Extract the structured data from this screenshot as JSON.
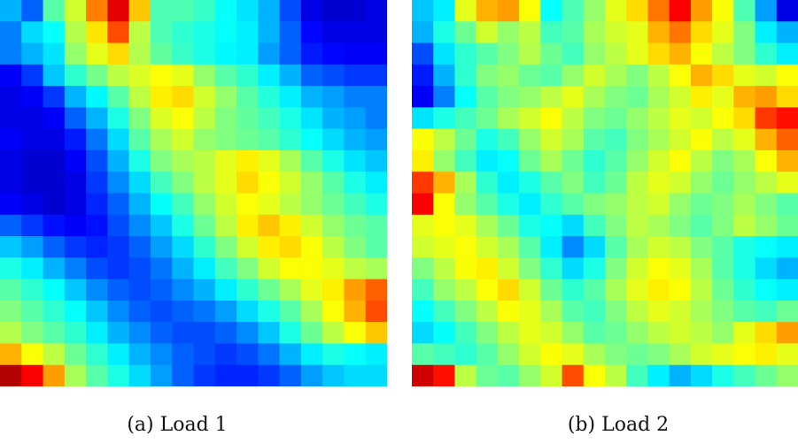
{
  "captions": {
    "a": "(a) Load 1",
    "b": "(b) Load 2"
  },
  "chart_data": [
    {
      "type": "heatmap",
      "title": "(a) Load 1",
      "rows": 18,
      "cols": 18,
      "colormap": "jet",
      "value_range": [
        0,
        1
      ],
      "values": [
        [
          0.3,
          0.22,
          0.46,
          0.58,
          0.75,
          0.9,
          0.68,
          0.45,
          0.45,
          0.43,
          0.38,
          0.35,
          0.3,
          0.2,
          0.1,
          0.08,
          0.08,
          0.1
        ],
        [
          0.25,
          0.34,
          0.38,
          0.55,
          0.65,
          0.8,
          0.56,
          0.45,
          0.42,
          0.4,
          0.38,
          0.36,
          0.3,
          0.22,
          0.13,
          0.1,
          0.1,
          0.1
        ],
        [
          0.25,
          0.3,
          0.35,
          0.52,
          0.6,
          0.66,
          0.55,
          0.47,
          0.43,
          0.4,
          0.37,
          0.36,
          0.28,
          0.22,
          0.15,
          0.13,
          0.12,
          0.12
        ],
        [
          0.12,
          0.18,
          0.32,
          0.42,
          0.49,
          0.56,
          0.59,
          0.62,
          0.6,
          0.52,
          0.46,
          0.42,
          0.36,
          0.3,
          0.22,
          0.2,
          0.18,
          0.18
        ],
        [
          0.1,
          0.12,
          0.18,
          0.3,
          0.37,
          0.46,
          0.56,
          0.64,
          0.66,
          0.58,
          0.52,
          0.46,
          0.41,
          0.36,
          0.3,
          0.28,
          0.25,
          0.25
        ],
        [
          0.1,
          0.1,
          0.12,
          0.22,
          0.3,
          0.4,
          0.5,
          0.59,
          0.62,
          0.56,
          0.5,
          0.47,
          0.44,
          0.4,
          0.35,
          0.3,
          0.28,
          0.25
        ],
        [
          0.12,
          0.1,
          0.1,
          0.15,
          0.24,
          0.34,
          0.46,
          0.54,
          0.58,
          0.52,
          0.5,
          0.48,
          0.46,
          0.42,
          0.38,
          0.34,
          0.3,
          0.28
        ],
        [
          0.1,
          0.08,
          0.08,
          0.12,
          0.2,
          0.3,
          0.4,
          0.5,
          0.54,
          0.56,
          0.6,
          0.64,
          0.6,
          0.54,
          0.46,
          0.4,
          0.35,
          0.32
        ],
        [
          0.1,
          0.08,
          0.08,
          0.1,
          0.18,
          0.26,
          0.34,
          0.44,
          0.5,
          0.56,
          0.6,
          0.66,
          0.62,
          0.58,
          0.52,
          0.46,
          0.4,
          0.36
        ],
        [
          0.12,
          0.1,
          0.08,
          0.1,
          0.16,
          0.22,
          0.3,
          0.38,
          0.44,
          0.52,
          0.58,
          0.62,
          0.6,
          0.56,
          0.52,
          0.48,
          0.44,
          0.4
        ],
        [
          0.22,
          0.18,
          0.14,
          0.12,
          0.14,
          0.2,
          0.26,
          0.32,
          0.4,
          0.48,
          0.56,
          0.64,
          0.68,
          0.64,
          0.58,
          0.52,
          0.48,
          0.46
        ],
        [
          0.32,
          0.28,
          0.22,
          0.18,
          0.16,
          0.18,
          0.22,
          0.28,
          0.34,
          0.42,
          0.5,
          0.58,
          0.64,
          0.66,
          0.62,
          0.56,
          0.5,
          0.46
        ],
        [
          0.4,
          0.36,
          0.3,
          0.25,
          0.2,
          0.18,
          0.2,
          0.24,
          0.3,
          0.36,
          0.44,
          0.5,
          0.58,
          0.62,
          0.62,
          0.6,
          0.56,
          0.54
        ],
        [
          0.46,
          0.42,
          0.38,
          0.32,
          0.26,
          0.22,
          0.2,
          0.22,
          0.26,
          0.3,
          0.36,
          0.42,
          0.48,
          0.54,
          0.6,
          0.64,
          0.72,
          0.78
        ],
        [
          0.5,
          0.46,
          0.42,
          0.38,
          0.32,
          0.26,
          0.22,
          0.2,
          0.22,
          0.24,
          0.28,
          0.34,
          0.4,
          0.46,
          0.54,
          0.62,
          0.7,
          0.8
        ],
        [
          0.55,
          0.5,
          0.46,
          0.42,
          0.36,
          0.3,
          0.26,
          0.22,
          0.2,
          0.2,
          0.22,
          0.26,
          0.32,
          0.4,
          0.48,
          0.56,
          0.62,
          0.68
        ],
        [
          0.7,
          0.62,
          0.56,
          0.48,
          0.42,
          0.36,
          0.3,
          0.26,
          0.22,
          0.2,
          0.18,
          0.2,
          0.24,
          0.3,
          0.36,
          0.4,
          0.38,
          0.36
        ],
        [
          0.95,
          0.88,
          0.72,
          0.54,
          0.46,
          0.4,
          0.34,
          0.28,
          0.22,
          0.18,
          0.16,
          0.16,
          0.18,
          0.22,
          0.28,
          0.32,
          0.34,
          0.34
        ]
      ]
    },
    {
      "type": "heatmap",
      "title": "(b) Load 2",
      "rows": 18,
      "cols": 18,
      "colormap": "jet",
      "value_range": [
        0,
        1
      ],
      "values": [
        [
          0.32,
          0.36,
          0.6,
          0.7,
          0.72,
          0.62,
          0.38,
          0.45,
          0.52,
          0.6,
          0.66,
          0.76,
          0.88,
          0.72,
          0.62,
          0.45,
          0.28,
          0.1
        ],
        [
          0.3,
          0.4,
          0.48,
          0.58,
          0.52,
          0.56,
          0.44,
          0.46,
          0.54,
          0.58,
          0.6,
          0.7,
          0.76,
          0.66,
          0.6,
          0.5,
          0.36,
          0.3
        ],
        [
          0.2,
          0.35,
          0.42,
          0.46,
          0.5,
          0.55,
          0.48,
          0.44,
          0.52,
          0.56,
          0.6,
          0.66,
          0.7,
          0.62,
          0.56,
          0.5,
          0.42,
          0.36
        ],
        [
          0.15,
          0.3,
          0.42,
          0.5,
          0.52,
          0.48,
          0.46,
          0.52,
          0.58,
          0.54,
          0.5,
          0.56,
          0.62,
          0.7,
          0.66,
          0.6,
          0.58,
          0.62
        ],
        [
          0.12,
          0.25,
          0.38,
          0.46,
          0.5,
          0.52,
          0.56,
          0.6,
          0.54,
          0.5,
          0.48,
          0.54,
          0.58,
          0.64,
          0.6,
          0.7,
          0.72,
          0.66
        ],
        [
          0.35,
          0.4,
          0.44,
          0.48,
          0.54,
          0.58,
          0.62,
          0.56,
          0.5,
          0.48,
          0.52,
          0.56,
          0.6,
          0.58,
          0.62,
          0.66,
          0.82,
          0.86
        ],
        [
          0.62,
          0.56,
          0.48,
          0.4,
          0.44,
          0.52,
          0.58,
          0.54,
          0.46,
          0.44,
          0.5,
          0.54,
          0.58,
          0.62,
          0.56,
          0.6,
          0.7,
          0.78
        ],
        [
          0.64,
          0.52,
          0.44,
          0.36,
          0.38,
          0.48,
          0.54,
          0.48,
          0.42,
          0.46,
          0.52,
          0.58,
          0.62,
          0.56,
          0.5,
          0.54,
          0.62,
          0.7
        ],
        [
          0.82,
          0.7,
          0.54,
          0.42,
          0.36,
          0.4,
          0.46,
          0.5,
          0.44,
          0.48,
          0.56,
          0.6,
          0.58,
          0.52,
          0.48,
          0.52,
          0.56,
          0.6
        ],
        [
          0.88,
          0.62,
          0.52,
          0.46,
          0.4,
          0.36,
          0.42,
          0.46,
          0.5,
          0.52,
          0.56,
          0.58,
          0.52,
          0.48,
          0.5,
          0.54,
          0.5,
          0.46
        ],
        [
          0.6,
          0.62,
          0.6,
          0.54,
          0.48,
          0.4,
          0.38,
          0.34,
          0.44,
          0.5,
          0.56,
          0.54,
          0.5,
          0.46,
          0.5,
          0.56,
          0.52,
          0.48
        ],
        [
          0.58,
          0.6,
          0.62,
          0.58,
          0.54,
          0.46,
          0.36,
          0.26,
          0.34,
          0.46,
          0.54,
          0.58,
          0.56,
          0.5,
          0.46,
          0.4,
          0.38,
          0.36
        ],
        [
          0.5,
          0.56,
          0.62,
          0.64,
          0.58,
          0.5,
          0.42,
          0.34,
          0.4,
          0.5,
          0.58,
          0.62,
          0.6,
          0.54,
          0.46,
          0.4,
          0.34,
          0.3
        ],
        [
          0.44,
          0.52,
          0.56,
          0.62,
          0.66,
          0.58,
          0.48,
          0.42,
          0.46,
          0.54,
          0.6,
          0.64,
          0.62,
          0.56,
          0.48,
          0.42,
          0.38,
          0.36
        ],
        [
          0.38,
          0.44,
          0.5,
          0.56,
          0.62,
          0.6,
          0.54,
          0.46,
          0.44,
          0.5,
          0.56,
          0.6,
          0.58,
          0.54,
          0.5,
          0.46,
          0.44,
          0.48
        ],
        [
          0.34,
          0.38,
          0.44,
          0.5,
          0.56,
          0.6,
          0.58,
          0.52,
          0.46,
          0.48,
          0.52,
          0.56,
          0.58,
          0.56,
          0.52,
          0.6,
          0.66,
          0.72
        ],
        [
          0.46,
          0.44,
          0.42,
          0.46,
          0.52,
          0.58,
          0.62,
          0.6,
          0.54,
          0.5,
          0.48,
          0.5,
          0.54,
          0.58,
          0.6,
          0.62,
          0.64,
          0.6
        ],
        [
          0.92,
          0.86,
          0.56,
          0.48,
          0.46,
          0.52,
          0.58,
          0.8,
          0.62,
          0.56,
          0.44,
          0.36,
          0.3,
          0.34,
          0.4,
          0.44,
          0.48,
          0.52
        ]
      ]
    }
  ]
}
